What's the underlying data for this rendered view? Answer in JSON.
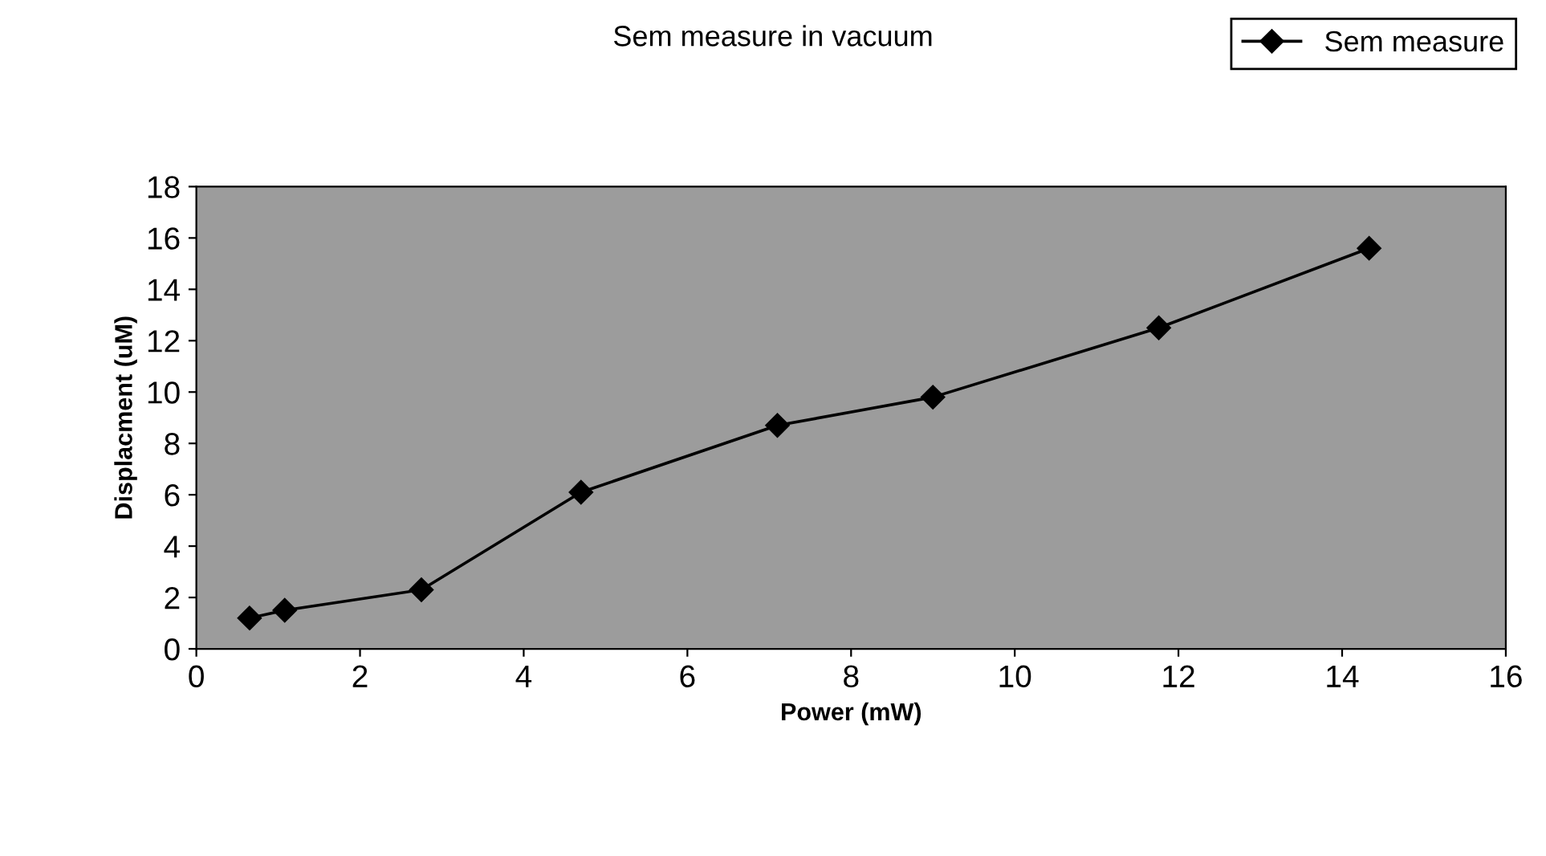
{
  "chart_data": {
    "type": "line",
    "title": "Sem measure in vacuum",
    "xlabel": "Power (mW)",
    "ylabel": "Displacment (uM)",
    "series": [
      {
        "name": "Sem measure",
        "color": "#000000",
        "x": [
          0.65,
          1.08,
          2.75,
          4.7,
          7.1,
          9.0,
          11.76,
          14.33
        ],
        "values": [
          1.2,
          1.5,
          2.3,
          6.1,
          8.7,
          9.8,
          12.5,
          15.6
        ]
      }
    ],
    "xlim": [
      0,
      16
    ],
    "xticks": [
      0,
      2,
      4,
      6,
      8,
      10,
      12,
      14,
      16
    ],
    "ylim": [
      0,
      18
    ],
    "yticks": [
      0,
      2,
      4,
      6,
      8,
      10,
      12,
      14,
      16,
      18
    ],
    "marker": "diamond",
    "line_style": "solid",
    "legend": "top right",
    "grid": false
  }
}
